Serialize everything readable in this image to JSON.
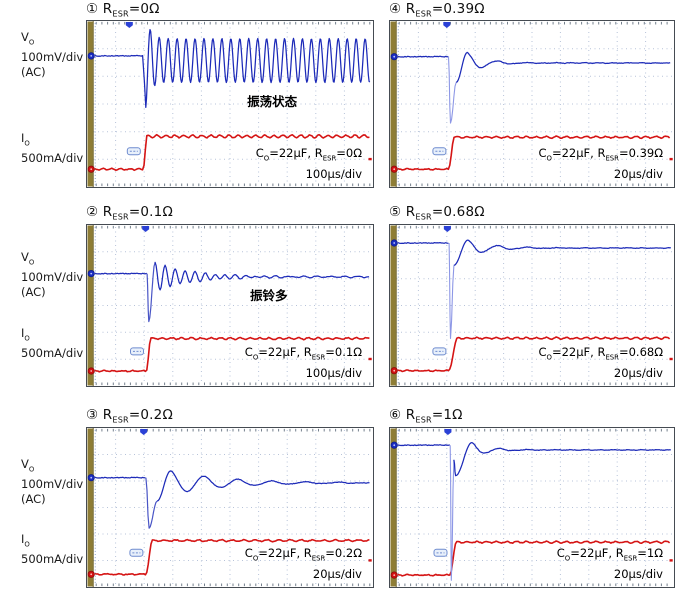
{
  "figure": {
    "y_axis_labels": {
      "vo": [
        "V_{O}",
        "100mV/div",
        "(AC)"
      ],
      "io": [
        "I_{O}",
        "500mA/div"
      ]
    },
    "colors": {
      "vo_trace": "#1c2ab8",
      "vo_spike": "#8d97e6",
      "io_trace": "#d51414",
      "grid": "#b7c3d9",
      "ticks": "#5d6b7a",
      "left_bar": "#8e7d35",
      "left_bar_edge": "#6f6228",
      "edge_dots": "#9db1d4",
      "trigger": "#2b41d6",
      "badge_fill": "#e8f0fb",
      "badge_stroke": "#6f8ccf"
    }
  },
  "chart_data": {
    "type": "line",
    "description": "LDO load-transient output response (Vo, AC-coupled, 100mV/div) and load current step (Io, 500mA/div) for six output-capacitor ESR values, Co=22uF",
    "series_info": [
      {
        "name": "Vo",
        "scale": "100mV/div",
        "coupling": "AC",
        "color": "#1c2ab8"
      },
      {
        "name": "Io",
        "scale": "500mA/div",
        "color": "#d51414"
      }
    ],
    "load_step_mA_approx": 600,
    "panels": [
      {
        "title": "① R_{ESR}=0Ω",
        "caption": "C_{O}=22μF, R_{ESR}=0Ω",
        "timebase": "100μs/div",
        "annotation": "振荡状态",
        "response": "sustained oscillation (unstable)",
        "undershoot_mV_approx": 190,
        "waveform": {
          "vo": {
            "mode": "sustained",
            "base": 0.21,
            "trigX": 0.148,
            "stepX": 0.198,
            "dipY": 0.52,
            "center": 0.238,
            "amp": 0.132,
            "period": 0.0313
          },
          "io": {
            "base": 0.893,
            "high": 0.695,
            "stepX": 0.196,
            "rise": 0.014,
            "rippleAmp": 0.008,
            "ripplePeriod": 0.0315
          }
        }
      },
      {
        "title": "② R_{ESR}=0.1Ω",
        "caption": "C_{O}=22μF, R_{ESR}=0.1Ω",
        "timebase": "100μs/div",
        "annotation": "振铃多",
        "response": "long decaying ringing",
        "undershoot_mV_approx": 180,
        "waveform": {
          "vo": {
            "mode": "damped",
            "base": 0.302,
            "trigX": 0.205,
            "stepX": 0.21,
            "dipY": 0.6,
            "dipW": 0.012,
            "peakX": 0.238,
            "peakY": 0.233,
            "settle": 0.322,
            "period": 0.035,
            "tau": 0.13,
            "residual": 0.004,
            "residualPeriod": 0.048,
            "riseVia": [],
            "spikeLight": false
          },
          "io": {
            "base": 0.907,
            "high": 0.705,
            "stepX": 0.207,
            "rise": 0.016,
            "rippleAmp": 0.005,
            "ripplePeriod": 0.034
          }
        }
      },
      {
        "title": "③ R_{ESR}=0.2Ω",
        "caption": "C_{O}=22μF, R_{ESR}=0.2Ω",
        "timebase": "20μs/div",
        "annotation": "",
        "response": "damped ringing, several cycles",
        "undershoot_mV_approx": 190,
        "waveform": {
          "vo": {
            "mode": "damped",
            "base": 0.3125,
            "trigX": 0.198,
            "stepX": 0.206,
            "dipY": 0.63,
            "dipW": 0.022,
            "peakX": 0.292,
            "peakY": 0.27,
            "settle": 0.345,
            "period": 0.118,
            "tau": 0.19,
            "residual": 0.0015,
            "residualPeriod": 0.06,
            "riseVia": [
              [
                0.028,
                0.46
              ]
            ],
            "spikeLight": false
          },
          "io": {
            "base": 0.92,
            "high": 0.708,
            "stepX": 0.205,
            "rise": 0.024,
            "rippleAmp": 0.005,
            "ripplePeriod": 0.04
          }
        }
      },
      {
        "title": "④ R_{ESR}=0.39Ω",
        "caption": "C_{O}=22μF, R_{ESR}=0.39Ω",
        "timebase": "20μs/div",
        "annotation": "",
        "response": "underdamped, settles after ~2 cycles",
        "undershoot_mV_approx": 240,
        "waveform": {
          "vo": {
            "mode": "damped",
            "base": 0.215,
            "trigX": 0.2,
            "stepX": 0.206,
            "dipY": 0.615,
            "dipW": 0.014,
            "peakX": 0.272,
            "peakY": 0.19,
            "settle": 0.253,
            "period": 0.107,
            "tau": 0.062,
            "residual": 0.0015,
            "residualPeriod": 0.05,
            "riseVia": [
              [
                0.02,
                0.37
              ]
            ],
            "spikeLight": true
          },
          "io": {
            "base": 0.893,
            "high": 0.7,
            "stepX": 0.206,
            "rise": 0.02,
            "rippleAmp": 0.005,
            "ripplePeriod": 0.035
          }
        }
      },
      {
        "title": "⑤ R_{ESR}=0.68Ω",
        "caption": "C_{O}=22μF, R_{ESR}=0.68Ω",
        "timebase": "20μs/div",
        "annotation": "",
        "response": "deep undershoot spike, well damped",
        "undershoot_mV_approx": 360,
        "waveform": {
          "vo": {
            "mode": "damped",
            "base": 0.112,
            "trigX": 0.202,
            "stepX": 0.208,
            "dipY": 0.705,
            "dipW": 0.01,
            "peakX": 0.274,
            "peakY": 0.094,
            "settle": 0.143,
            "period": 0.106,
            "tau": 0.085,
            "residual": 0.0015,
            "residualPeriod": 0.05,
            "riseVia": [
              [
                0.012,
                0.25
              ]
            ],
            "spikeLight": true
          },
          "io": {
            "base": 0.905,
            "high": 0.703,
            "stepX": 0.206,
            "rise": 0.032,
            "rippleAmp": 0.005,
            "ripplePeriod": 0.035
          }
        }
      },
      {
        "title": "⑥ R_{ESR}=1Ω",
        "caption": "C_{O}=22μF, R_{ESR}=1Ω",
        "timebase": "20μs/div",
        "annotation": "",
        "response": "very deep narrow undershoot spike, fast damped recovery",
        "undershoot_mV_approx": 510,
        "waveform": {
          "vo": {
            "mode": "damped",
            "base": 0.108,
            "trigX": 0.204,
            "stepX": 0.212,
            "dipY": 0.958,
            "dipW": 0.008,
            "peakX": 0.288,
            "peakY": 0.092,
            "settle": 0.138,
            "period": 0.098,
            "tau": 0.06,
            "residual": 0.0015,
            "residualPeriod": 0.05,
            "riseVia": [
              [
                0.009,
                0.2
              ],
              [
                0.015,
                0.3
              ]
            ],
            "spikeLight": true
          },
          "io": {
            "base": 0.925,
            "high": 0.718,
            "stepX": 0.21,
            "rise": 0.024,
            "rippleAmp": 0.005,
            "ripplePeriod": 0.035
          }
        }
      }
    ]
  }
}
